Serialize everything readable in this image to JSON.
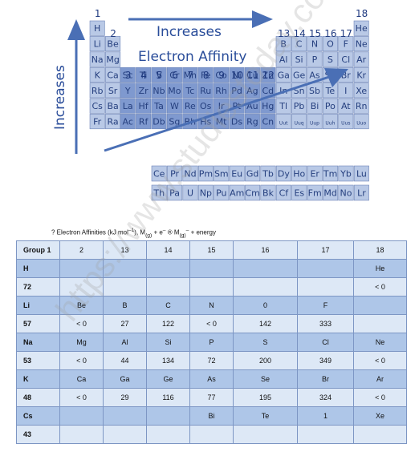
{
  "periodic_table": {
    "groups": [
      "1",
      "2",
      "3",
      "4",
      "5",
      "6",
      "7",
      "8",
      "9",
      "10",
      "11",
      "12",
      "13",
      "14",
      "15",
      "16",
      "17",
      "18"
    ],
    "rows": [
      [
        "H",
        "",
        "",
        "",
        "",
        "",
        "",
        "",
        "",
        "",
        "",
        "",
        "",
        "",
        "",
        "",
        "",
        "He"
      ],
      [
        "Li",
        "Be",
        "",
        "",
        "",
        "",
        "",
        "",
        "",
        "",
        "",
        "",
        "B",
        "C",
        "N",
        "O",
        "F",
        "Ne"
      ],
      [
        "Na",
        "Mg",
        "",
        "",
        "",
        "",
        "",
        "",
        "",
        "",
        "",
        "",
        "Al",
        "Si",
        "P",
        "S",
        "Cl",
        "Ar"
      ],
      [
        "K",
        "Ca",
        "Sc",
        "Ti",
        "V",
        "Cr",
        "Mn",
        "Fe",
        "Co",
        "Ni",
        "Cu",
        "Zn",
        "Ga",
        "Ge",
        "As",
        "Se",
        "Br",
        "Kr"
      ],
      [
        "Rb",
        "Sr",
        "Y",
        "Zr",
        "Nb",
        "Mo",
        "Tc",
        "Ru",
        "Rh",
        "Pd",
        "Ag",
        "Cd",
        "In",
        "Sn",
        "Sb",
        "Te",
        "I",
        "Xe"
      ],
      [
        "Cs",
        "Ba",
        "La",
        "Hf",
        "Ta",
        "W",
        "Re",
        "Os",
        "Ir",
        "Pt",
        "Au",
        "Hg",
        "Tl",
        "Pb",
        "Bi",
        "Po",
        "At",
        "Rn"
      ],
      [
        "Fr",
        "Ra",
        "Ac",
        "Rf",
        "Db",
        "Sg",
        "Bh",
        "Hs",
        "Mt",
        "Ds",
        "Rg",
        "Cn",
        "Uut",
        "Uuq",
        "Uup",
        "Uuh",
        "Uus",
        "Uuo"
      ]
    ],
    "lanthanides": [
      "Ce",
      "Pr",
      "Nd",
      "Pm",
      "Sm",
      "Eu",
      "Gd",
      "Tb",
      "Dy",
      "Ho",
      "Er",
      "Tm",
      "Yb",
      "Lu"
    ],
    "actinides": [
      "Th",
      "Pa",
      "U",
      "Np",
      "Pu",
      "Am",
      "Cm",
      "Bk",
      "Cf",
      "Es",
      "Fm",
      "Md",
      "No",
      "Lr"
    ],
    "horizontal_label": "Increases",
    "vertical_label": "Increases",
    "title": "Electron Affinity",
    "colors": {
      "cell": "#b9c9e6",
      "cell_dark": "#7f99cf",
      "arrow": "#4a6fb5",
      "text": "#2a4d9a"
    }
  },
  "caption": {
    "prefix": "? Electron Affinities (kJ mol",
    "sup1": "–1",
    "mid1": "), M",
    "sub1": "(g)",
    "mid2": " + e",
    "sup2": "–",
    "arrow": " ® ",
    "mid3": "M",
    "sub2": "(g)",
    "sup3": "–",
    "suffix": " + energy"
  },
  "table": {
    "rows": [
      [
        "Group  1",
        "2",
        "13",
        "14",
        "15",
        "16",
        "17",
        "18"
      ],
      [
        "H",
        "",
        "",
        "",
        "",
        "",
        "",
        "He"
      ],
      [
        "72",
        "",
        "",
        "",
        "",
        "",
        "",
        "< 0"
      ],
      [
        "Li",
        "Be",
        "B",
        "C",
        "N",
        "0",
        "F",
        ""
      ],
      [
        "57",
        "< 0",
        "27",
        "122",
        "< 0",
        "142",
        "333",
        ""
      ],
      [
        "Na",
        "Mg",
        "Al",
        "Si",
        "P",
        "S",
        "Cl",
        "Ne"
      ],
      [
        "53",
        "< 0",
        "44",
        "134",
        "72",
        "200",
        "349",
        "< 0"
      ],
      [
        "K",
        "Ca",
        "Ga",
        "Ge",
        "As",
        "Se",
        "Br",
        "Ar"
      ],
      [
        "48",
        "< 0",
        "29",
        "116",
        "77",
        "195",
        "324",
        "< 0"
      ],
      [
        "Cs",
        "",
        "",
        "",
        "Bi",
        "Te",
        "1",
        "Xe"
      ],
      [
        "43",
        "",
        "",
        "",
        "",
        "",
        "",
        ""
      ]
    ]
  },
  "watermark": "https://www.studiestoday.com"
}
